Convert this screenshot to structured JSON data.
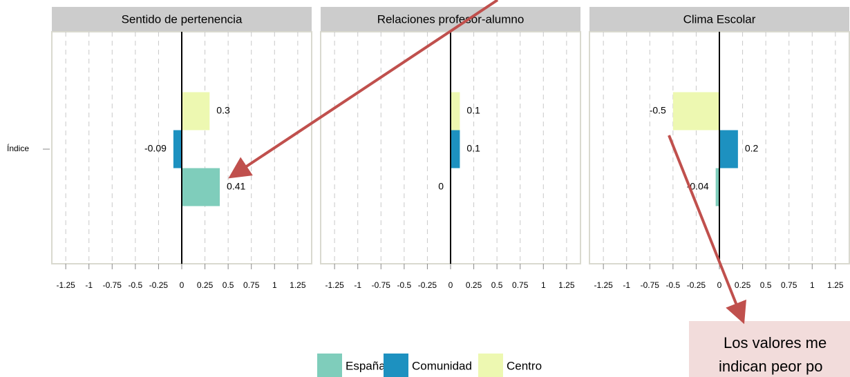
{
  "chart_data": [
    {
      "type": "bar",
      "title": "Sentido de pertenencia",
      "categories": [
        "Índice"
      ],
      "series": [
        {
          "name": "España",
          "color": "#7fcdbb",
          "values": [
            0.41
          ]
        },
        {
          "name": "Comunidad",
          "color": "#1d91c0",
          "values": [
            -0.09
          ]
        },
        {
          "name": "Centro",
          "color": "#edf8b1",
          "values": [
            0.3
          ]
        }
      ],
      "xlim": [
        -1.4,
        1.4
      ],
      "xticks": [
        -1.25,
        -1,
        -0.75,
        -0.5,
        -0.25,
        0,
        0.25,
        0.5,
        0.75,
        1,
        1.25
      ],
      "grid": true
    },
    {
      "type": "bar",
      "title": "Relaciones profesor-alumno",
      "series": [
        {
          "name": "España",
          "color": "#7fcdbb",
          "values": [
            0
          ]
        },
        {
          "name": "Comunidad",
          "color": "#1d91c0",
          "values": [
            0.1
          ]
        },
        {
          "name": "Centro",
          "color": "#edf8b1",
          "values": [
            0.1
          ]
        }
      ],
      "xlim": [
        -1.4,
        1.4
      ],
      "xticks": [
        -1.25,
        -1,
        -0.75,
        -0.5,
        -0.25,
        0,
        0.25,
        0.5,
        0.75,
        1,
        1.25
      ],
      "grid": true
    },
    {
      "type": "bar",
      "title": "Clima Escolar",
      "series": [
        {
          "name": "España",
          "color": "#7fcdbb",
          "values": [
            -0.04
          ]
        },
        {
          "name": "Comunidad",
          "color": "#1d91c0",
          "values": [
            0.2
          ]
        },
        {
          "name": "Centro",
          "color": "#edf8b1",
          "values": [
            -0.5
          ]
        }
      ],
      "xlim": [
        -1.4,
        1.4
      ],
      "xticks": [
        -1.25,
        -1,
        -0.75,
        -0.5,
        -0.25,
        0,
        0.25,
        0.5,
        0.75,
        1,
        1.25
      ],
      "grid": true,
      "annotations": [
        "Los valores me",
        "indican peor po"
      ]
    }
  ]
}
